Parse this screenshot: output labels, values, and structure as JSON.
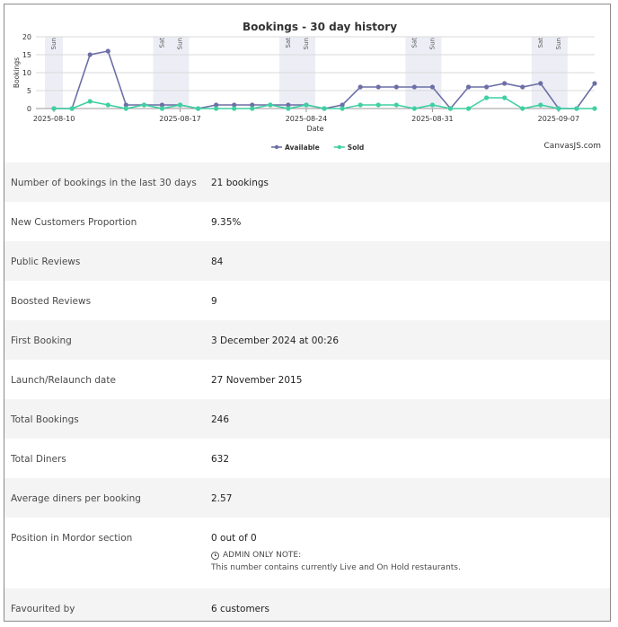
{
  "chart_data": {
    "type": "line",
    "title": "Bookings - 30 day history",
    "xlabel": "Date",
    "ylabel": "Bookings",
    "ylim": [
      0,
      20
    ],
    "yticks": [
      "0",
      "5",
      "10",
      "15",
      "20"
    ],
    "xlim": [
      "2025-08-09",
      "2025-09-09"
    ],
    "xticks": [
      "2025-08-10",
      "2025-08-17",
      "2025-08-24",
      "2025-08-31",
      "2025-09-07"
    ],
    "weekend_bands": [
      {
        "date": "2025-08-10",
        "labels": [
          "Sun"
        ]
      },
      {
        "date": "2025-08-16",
        "labels": [
          "Sat",
          "Sun"
        ]
      },
      {
        "date": "2025-08-23",
        "labels": [
          "Sat",
          "Sun"
        ]
      },
      {
        "date": "2025-08-30",
        "labels": [
          "Sat",
          "Sun"
        ]
      },
      {
        "date": "2025-09-06",
        "labels": [
          "Sat",
          "Sun"
        ]
      }
    ],
    "x": [
      "2025-08-10",
      "2025-08-11",
      "2025-08-12",
      "2025-08-13",
      "2025-08-14",
      "2025-08-15",
      "2025-08-16",
      "2025-08-17",
      "2025-08-18",
      "2025-08-19",
      "2025-08-20",
      "2025-08-21",
      "2025-08-22",
      "2025-08-23",
      "2025-08-24",
      "2025-08-25",
      "2025-08-26",
      "2025-08-27",
      "2025-08-28",
      "2025-08-29",
      "2025-08-30",
      "2025-08-31",
      "2025-09-01",
      "2025-09-02",
      "2025-09-03",
      "2025-09-04",
      "2025-09-05",
      "2025-09-06",
      "2025-09-07",
      "2025-09-08",
      "2025-09-09"
    ],
    "series": [
      {
        "name": "Available",
        "color": "#6c6fa6",
        "values": [
          0,
          0,
          15,
          16,
          1,
          1,
          1,
          1,
          0,
          1,
          1,
          1,
          1,
          1,
          1,
          0,
          1,
          6,
          6,
          6,
          6,
          6,
          0,
          6,
          6,
          7,
          6,
          7,
          0,
          0,
          7
        ]
      },
      {
        "name": "Sold",
        "color": "#3fd0a2",
        "values": [
          0,
          0,
          2,
          1,
          0,
          1,
          0,
          1,
          0,
          0,
          0,
          0,
          1,
          0,
          1,
          0,
          0,
          1,
          1,
          1,
          0,
          1,
          0,
          0,
          3,
          3,
          0,
          1,
          0,
          0,
          0
        ]
      }
    ],
    "legend_position": "bottom-center",
    "grid": true,
    "credit": "CanvasJS.com"
  },
  "stats": [
    {
      "label": "Number of bookings in the last 30 days",
      "value": "21 bookings"
    },
    {
      "label": "New Customers Proportion",
      "value": "9.35%"
    },
    {
      "label": "Public Reviews",
      "value": "84"
    },
    {
      "label": "Boosted Reviews",
      "value": "9"
    },
    {
      "label": "First Booking",
      "value": "3 December 2024 at 00:26"
    },
    {
      "label": "Launch/Relaunch date",
      "value": "27 November 2015"
    },
    {
      "label": "Total Bookings",
      "value": "246"
    },
    {
      "label": "Total Diners",
      "value": "632"
    },
    {
      "label": "Average diners per booking",
      "value": "2.57"
    },
    {
      "label": "Position in Mordor section",
      "value": "0 out of 0",
      "note_title": "ADMIN ONLY NOTE:",
      "note_text": "This number contains currently Live and On Hold restaurants."
    },
    {
      "label": "Favourited by",
      "value": "6 customers"
    }
  ]
}
